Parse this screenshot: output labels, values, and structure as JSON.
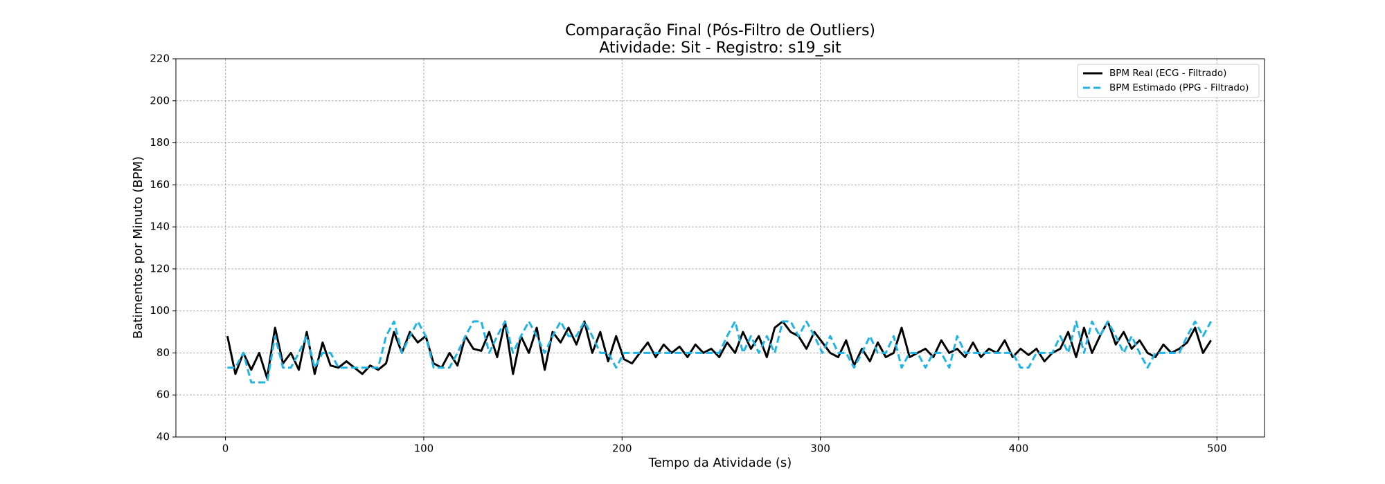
{
  "chart_data": {
    "type": "line",
    "title": "Comparação Final (Pós-Filtro de Outliers)",
    "subtitle": "Atividade: Sit - Registro: s19_sit",
    "x_label": "Tempo da Atividade (s)",
    "y_label": "Batimentos por Minuto (BPM)",
    "x": [
      1,
      5,
      9,
      13,
      17,
      21,
      25,
      29,
      33,
      37,
      41,
      45,
      49,
      53,
      57,
      61,
      65,
      69,
      73,
      77,
      81,
      85,
      89,
      93,
      97,
      101,
      105,
      109,
      113,
      117,
      121,
      125,
      129,
      133,
      137,
      141,
      145,
      149,
      153,
      157,
      161,
      165,
      169,
      173,
      177,
      181,
      185,
      189,
      193,
      197,
      201,
      205,
      209,
      213,
      217,
      221,
      225,
      229,
      233,
      237,
      241,
      245,
      249,
      253,
      257,
      261,
      265,
      269,
      273,
      277,
      281,
      285,
      289,
      293,
      297,
      301,
      305,
      309,
      313,
      317,
      321,
      325,
      329,
      333,
      337,
      341,
      345,
      349,
      353,
      357,
      361,
      365,
      369,
      373,
      377,
      381,
      385,
      389,
      393,
      397,
      401,
      405,
      409,
      413,
      417,
      421,
      425,
      429,
      433,
      437,
      441,
      445,
      449,
      453,
      457,
      461,
      465,
      469,
      473,
      477,
      481,
      485,
      489,
      493,
      497
    ],
    "series": [
      {
        "name": "BPM Real (ECG - Filtrado)",
        "color": "#000000",
        "dashed": false,
        "values": [
          88,
          70,
          80,
          72,
          80,
          68,
          92,
          75,
          80,
          72,
          90,
          70,
          85,
          74,
          73,
          76,
          73,
          70,
          74,
          72,
          75,
          90,
          80,
          90,
          85,
          88,
          75,
          73,
          80,
          74,
          88,
          82,
          81,
          90,
          78,
          95,
          70,
          88,
          80,
          92,
          72,
          90,
          85,
          92,
          84,
          95,
          80,
          90,
          76,
          88,
          77,
          75,
          80,
          85,
          78,
          84,
          80,
          83,
          78,
          84,
          80,
          82,
          78,
          85,
          80,
          90,
          82,
          88,
          78,
          92,
          95,
          90,
          88,
          82,
          90,
          85,
          80,
          78,
          86,
          74,
          82,
          76,
          85,
          78,
          80,
          92,
          78,
          80,
          82,
          78,
          86,
          80,
          82,
          78,
          85,
          78,
          82,
          80,
          86,
          78,
          82,
          79,
          82,
          76,
          80,
          82,
          90,
          78,
          92,
          80,
          88,
          95,
          84,
          90,
          82,
          86,
          80,
          78,
          84,
          80,
          82,
          85,
          92,
          80,
          86
        ]
      },
      {
        "name": "BPM Estimado (PPG - Filtrado)",
        "color": "#1fb4e6",
        "dashed": true,
        "values": [
          73,
          73,
          80,
          66,
          66,
          66,
          88,
          73,
          73,
          80,
          88,
          73,
          80,
          80,
          73,
          73,
          73,
          73,
          73,
          73,
          88,
          95,
          80,
          88,
          95,
          88,
          73,
          73,
          73,
          80,
          88,
          95,
          95,
          80,
          88,
          95,
          80,
          88,
          95,
          88,
          80,
          88,
          95,
          88,
          88,
          95,
          88,
          80,
          80,
          73,
          80,
          80,
          80,
          80,
          80,
          80,
          80,
          80,
          80,
          80,
          80,
          80,
          80,
          88,
          95,
          80,
          88,
          80,
          88,
          80,
          95,
          95,
          88,
          95,
          88,
          80,
          88,
          80,
          80,
          73,
          80,
          88,
          80,
          80,
          88,
          73,
          80,
          80,
          73,
          80,
          80,
          73,
          88,
          80,
          80,
          80,
          80,
          80,
          80,
          80,
          73,
          73,
          80,
          80,
          80,
          88,
          80,
          95,
          80,
          95,
          88,
          95,
          88,
          80,
          88,
          80,
          73,
          80,
          80,
          80,
          80,
          88,
          95,
          88,
          95
        ]
      }
    ],
    "xlim": [
      -25,
      524
    ],
    "ylim": [
      40,
      220
    ],
    "xticks": [
      0,
      100,
      200,
      300,
      400,
      500
    ],
    "yticks": [
      40,
      60,
      80,
      100,
      120,
      140,
      160,
      180,
      200,
      220
    ],
    "grid": true,
    "legend": "upper right"
  }
}
